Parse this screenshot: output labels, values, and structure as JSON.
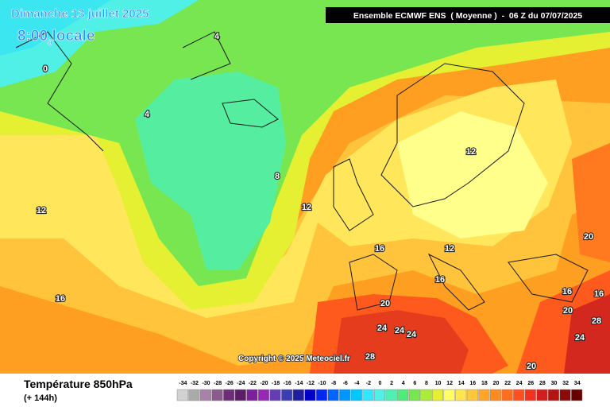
{
  "header": {
    "date": "Dimanche 13 juillet 2025",
    "time": "8:00",
    "time_sub": "0",
    "time_suffix": "locale",
    "model": "Ensemble ECMWF ENS  ( Moyenne )  -  06 Z du 07/07/2025"
  },
  "copyright": "Copyright © 2025 Meteociel.fr",
  "footer": {
    "title": "Température 850hPa",
    "lead": "(+ 144h)"
  },
  "scale": [
    {
      "value": -34,
      "color": "#d2d2d2"
    },
    {
      "value": -32,
      "color": "#aaaaaa"
    },
    {
      "value": -30,
      "color": "#a882a8"
    },
    {
      "value": -28,
      "color": "#8c5a8c"
    },
    {
      "value": -26,
      "color": "#6e2d78"
    },
    {
      "value": -24,
      "color": "#5a1e64"
    },
    {
      "value": -22,
      "color": "#7d1e9b"
    },
    {
      "value": -20,
      "color": "#9628b4"
    },
    {
      "value": -18,
      "color": "#643cb4"
    },
    {
      "value": -16,
      "color": "#3c3cb4"
    },
    {
      "value": -14,
      "color": "#1e1ea0"
    },
    {
      "value": -12,
      "color": "#0000c8"
    },
    {
      "value": -10,
      "color": "#0028f0"
    },
    {
      "value": -8,
      "color": "#0064ff"
    },
    {
      "value": -6,
      "color": "#0096ff"
    },
    {
      "value": -4,
      "color": "#00c8ff"
    },
    {
      "value": -2,
      "color": "#32e6ff"
    },
    {
      "value": 0,
      "color": "#50f0e6"
    },
    {
      "value": 2,
      "color": "#50f0b4"
    },
    {
      "value": 4,
      "color": "#50eb78"
    },
    {
      "value": 6,
      "color": "#78e650"
    },
    {
      "value": 8,
      "color": "#aaeb3c"
    },
    {
      "value": 10,
      "color": "#e6f032"
    },
    {
      "value": 12,
      "color": "#ffff64"
    },
    {
      "value": 14,
      "color": "#ffe650"
    },
    {
      "value": 16,
      "color": "#ffc83c"
    },
    {
      "value": 18,
      "color": "#ffa528"
    },
    {
      "value": 20,
      "color": "#ff8c1e"
    },
    {
      "value": 22,
      "color": "#ff6e1e"
    },
    {
      "value": 24,
      "color": "#ff501e"
    },
    {
      "value": 26,
      "color": "#f0321e"
    },
    {
      "value": 28,
      "color": "#d21e1e"
    },
    {
      "value": 30,
      "color": "#b41414"
    },
    {
      "value": 32,
      "color": "#8c0a0a"
    },
    {
      "value": 34,
      "color": "#640000"
    }
  ],
  "contours": [
    "4",
    "4",
    "0",
    "8",
    "12",
    "12",
    "12",
    "12",
    "16",
    "16",
    "16",
    "16",
    "16",
    "20",
    "20",
    "20",
    "20",
    "24",
    "24",
    "24",
    "24",
    "28",
    "28"
  ]
}
